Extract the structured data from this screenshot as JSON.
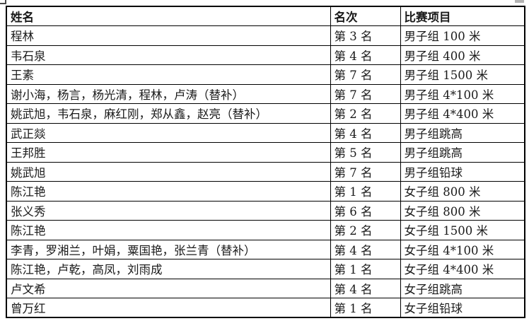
{
  "table": {
    "columns": [
      {
        "label": "姓名"
      },
      {
        "label": "名次"
      },
      {
        "label": "比赛项目"
      }
    ],
    "rows": [
      {
        "name": "程林",
        "rank": "第 3 名",
        "event": "男子组 100 米"
      },
      {
        "name": "韦石泉",
        "rank": "第 4 名",
        "event": "男子组 400 米"
      },
      {
        "name": "王素",
        "rank": "第 7 名",
        "event": "男子组 1500 米"
      },
      {
        "name": "谢小海，杨言，杨光清，程林，卢涛（替补）",
        "rank": "第 7 名",
        "event": "男子组 4*100 米"
      },
      {
        "name": "姚武旭，韦石泉，麻红刚，郑从鑫，赵亮（替补）",
        "rank": "第 2 名",
        "event": "男子组 4*400 米"
      },
      {
        "name": "武正燚",
        "rank": "第 4 名",
        "event": "男子组跳高"
      },
      {
        "name": "王邦胜",
        "rank": "第 5 名",
        "event": "男子组跳高"
      },
      {
        "name": "姚武旭",
        "rank": "第 7 名",
        "event": "男子组铅球"
      },
      {
        "name": "陈江艳",
        "rank": "第 1 名",
        "event": "女子组 800 米"
      },
      {
        "name": "张义秀",
        "rank": "第 6 名",
        "event": "女子组 800 米"
      },
      {
        "name": "陈江艳",
        "rank": "第 2 名",
        "event": "女子组 1500 米"
      },
      {
        "name": "李青，罗湘兰，叶娟，粟国艳，张兰青（替补）",
        "rank": "第 4 名",
        "event": "女子组 4*100 米"
      },
      {
        "name": "陈江艳，卢乾，高凤，刘雨成",
        "rank": "第 1 名",
        "event": "女子组 4*400 米"
      },
      {
        "name": "卢文希",
        "rank": "第 4 名",
        "event": "女子组跳高"
      },
      {
        "name": "曾万红",
        "rank": "第 1 名",
        "event": "女子组铅球"
      }
    ]
  },
  "colors": {
    "text": "#1a1a1a",
    "border": "#000000",
    "background": "#ffffff"
  }
}
